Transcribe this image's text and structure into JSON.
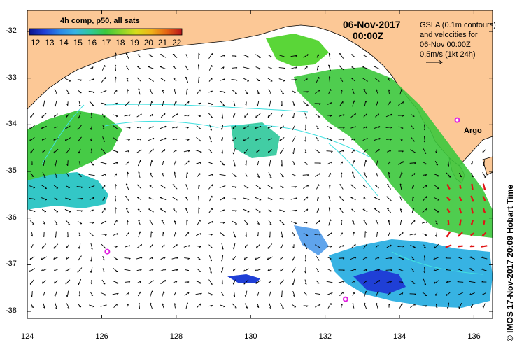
{
  "colorbar": {
    "title": "4h comp, p50, all sats",
    "ticks": [
      "12",
      "13",
      "14",
      "15",
      "16",
      "17",
      "18",
      "19",
      "20",
      "21",
      "22"
    ],
    "colors": [
      "#0a128c",
      "#1f3fd6",
      "#2a86e6",
      "#37b3e3",
      "#2ec89a",
      "#3cc83c",
      "#86d42a",
      "#d6dc1c",
      "#f0b218",
      "#e46414",
      "#b8141a"
    ]
  },
  "date_line": "06-Nov-2017",
  "time_line": "00:00Z",
  "legend": {
    "line1": "GSLA (0.1m contours)",
    "line2": "and velocities for",
    "line3": "06-Nov 00:00Z",
    "line4": "0.5m/s (1kt 24h)"
  },
  "argo_label": "Argo",
  "credit": "© IMOS 17-Nov-2017 20:09 Hobart Time",
  "axes": {
    "x_ticks": [
      "124",
      "126",
      "128",
      "130",
      "132",
      "134",
      "136"
    ],
    "y_ticks": [
      "-32",
      "-33",
      "-34",
      "-35",
      "-36",
      "-37",
      "-38"
    ]
  },
  "colors": {
    "land": "#fcc896",
    "frame": "#000000",
    "contour": "#40e0e0",
    "argo": "#e020e0"
  },
  "argo_floats": [
    {
      "lon": 135.55,
      "lat": -33.9
    },
    {
      "lon": 126.15,
      "lat": -36.72
    },
    {
      "lon": 132.55,
      "lat": -37.74
    }
  ]
}
